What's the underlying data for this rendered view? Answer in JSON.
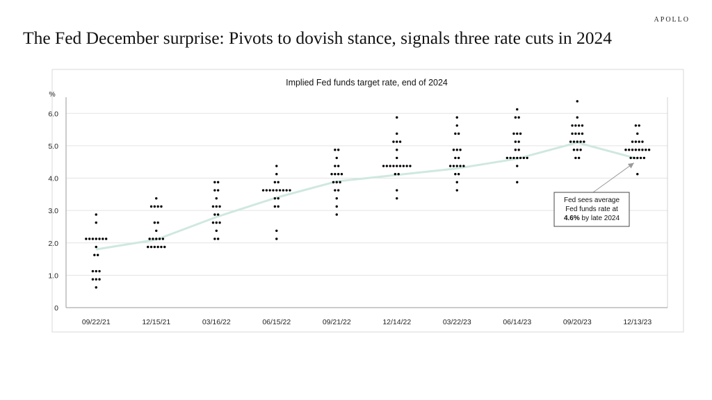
{
  "brand": "APOLLO",
  "headline": "The Fed December surprise: Pivots to dovish stance, signals three rate cuts in 2024",
  "chart_data": {
    "type": "scatter",
    "title": "Implied Fed funds target rate, end of 2024",
    "ylabel": "%",
    "xlabel": "",
    "ylim": [
      0,
      6.5
    ],
    "y_ticks": [
      0,
      1.0,
      2.0,
      3.0,
      4.0,
      5.0,
      6.0
    ],
    "y_tick_labels": [
      "0",
      "1.0",
      "2.0",
      "3.0",
      "4.0",
      "5.0",
      "6.0"
    ],
    "grid": true,
    "legend": "none",
    "categories": [
      "09/22/21",
      "12/15/21",
      "03/16/22",
      "06/15/22",
      "09/21/22",
      "12/14/22",
      "03/22/23",
      "06/14/23",
      "09/20/23",
      "12/13/23"
    ],
    "series": [
      {
        "type": "dot-plot",
        "color": "#000000",
        "values": [
          [
            0.625,
            0.875,
            0.875,
            0.875,
            1.125,
            1.125,
            1.125,
            1.625,
            1.625,
            1.875,
            2.125,
            2.125,
            2.125,
            2.125,
            2.125,
            2.125,
            2.125,
            2.625,
            2.875
          ],
          [
            1.875,
            1.875,
            1.875,
            1.875,
            1.875,
            1.875,
            2.125,
            2.125,
            2.125,
            2.125,
            2.125,
            2.375,
            2.625,
            2.625,
            3.125,
            3.125,
            3.125,
            3.125,
            3.375
          ],
          [
            2.125,
            2.125,
            2.375,
            2.625,
            2.625,
            2.625,
            2.875,
            2.875,
            3.125,
            3.125,
            3.125,
            3.375,
            3.625,
            3.625,
            3.875,
            3.875
          ],
          [
            2.125,
            2.375,
            3.125,
            3.125,
            3.375,
            3.375,
            3.625,
            3.625,
            3.625,
            3.625,
            3.625,
            3.625,
            3.625,
            3.625,
            3.625,
            3.875,
            3.875,
            4.125,
            4.375
          ],
          [
            2.875,
            3.125,
            3.375,
            3.625,
            3.625,
            3.875,
            3.875,
            3.875,
            4.125,
            4.125,
            4.125,
            4.125,
            4.375,
            4.375,
            4.625,
            4.875,
            4.875
          ],
          [
            3.375,
            3.625,
            4.125,
            4.125,
            4.375,
            4.375,
            4.375,
            4.375,
            4.375,
            4.375,
            4.375,
            4.375,
            4.375,
            4.625,
            4.875,
            5.125,
            5.125,
            5.125,
            5.375,
            5.875
          ],
          [
            3.625,
            3.875,
            4.125,
            4.125,
            4.375,
            4.375,
            4.375,
            4.375,
            4.375,
            4.625,
            4.625,
            4.875,
            4.875,
            4.875,
            5.375,
            5.375,
            5.625,
            5.875
          ],
          [
            3.875,
            4.375,
            4.625,
            4.625,
            4.625,
            4.625,
            4.625,
            4.625,
            4.625,
            4.875,
            4.875,
            5.125,
            5.125,
            5.375,
            5.375,
            5.375,
            5.875,
            5.875,
            6.125
          ],
          [
            4.625,
            4.625,
            4.875,
            4.875,
            4.875,
            5.125,
            5.125,
            5.125,
            5.125,
            5.125,
            5.375,
            5.375,
            5.375,
            5.375,
            5.625,
            5.625,
            5.625,
            5.625,
            5.875,
            6.375
          ],
          [
            4.125,
            4.625,
            4.625,
            4.625,
            4.625,
            4.625,
            4.875,
            4.875,
            4.875,
            4.875,
            4.875,
            4.875,
            4.875,
            4.875,
            5.125,
            5.125,
            5.125,
            5.125,
            5.375,
            5.625,
            5.625
          ]
        ]
      },
      {
        "type": "line",
        "color": "#cfe8e0",
        "values": [
          1.8,
          2.1,
          2.8,
          3.4,
          3.9,
          4.1,
          4.3,
          4.6,
          5.1,
          4.6
        ]
      }
    ],
    "annotation": {
      "text_before": "Fed sees average",
      "text_line2": "Fed funds rate at",
      "text_bold": "4.6%",
      "text_after": " by late 2024",
      "points_to_category": "12/13/23",
      "points_to_value": 4.6
    }
  }
}
